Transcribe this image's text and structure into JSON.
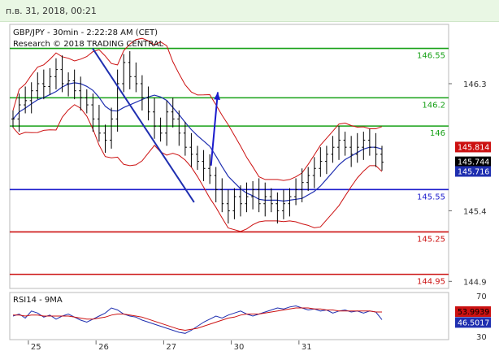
{
  "header": {
    "datetime": "п.в. 31, 2018, 00:21"
  },
  "colors": {
    "bull": "#000000",
    "ma": "#1f2fb0",
    "band": "#cc1111",
    "resistance": "#16a016",
    "pivot": "#1a1acc",
    "support": "#cc1111",
    "arrow": "#1a1acc",
    "rsi": "#1f2fb0",
    "rsi_ma": "#cc1111"
  },
  "chart_data": [
    {
      "type": "candlestick",
      "title": "GBP/JPY - 30min - 2:22:28 AM (CET)",
      "subtitle": "Research © 2018 TRADING CENTRAL",
      "ylim": [
        144.85,
        146.72
      ],
      "yticks": [
        "146.3",
        "145.4",
        "144.9"
      ],
      "xticks": [
        "25",
        "26",
        "27",
        "30",
        "31"
      ],
      "levels": [
        {
          "value": 146.55,
          "label": "146.55",
          "kind": "resistance"
        },
        {
          "value": 146.2,
          "label": "146.2",
          "kind": "resistance"
        },
        {
          "value": 146.0,
          "label": "146",
          "kind": "resistance"
        },
        {
          "value": 145.55,
          "label": "145.55",
          "kind": "pivot"
        },
        {
          "value": 145.25,
          "label": "145.25",
          "kind": "support"
        },
        {
          "value": 144.95,
          "label": "144.95",
          "kind": "support"
        }
      ],
      "price_tags": [
        {
          "label": "145.814",
          "value": 145.814,
          "kind": "band"
        },
        {
          "label": "145.744",
          "value": 145.744,
          "kind": "last"
        },
        {
          "label": "145.716",
          "value": 145.716,
          "kind": "ma"
        }
      ],
      "series": [
        {
          "kind": "close",
          "values": [
            146.05,
            146.15,
            146.18,
            146.25,
            146.3,
            146.28,
            146.35,
            146.4,
            146.3,
            146.32,
            146.25,
            146.2,
            146.15,
            146.05,
            145.95,
            145.9,
            146.05,
            146.3,
            146.45,
            146.35,
            146.3,
            146.2,
            146.1,
            146.0,
            145.95,
            146.1,
            146.05,
            145.95,
            145.85,
            145.8,
            145.75,
            145.7,
            145.65,
            145.55,
            145.45,
            145.4,
            145.5,
            145.45,
            145.5,
            145.55,
            145.45,
            145.5,
            145.45,
            145.4,
            145.45,
            145.5,
            145.55,
            145.6,
            145.65,
            145.7,
            145.75,
            145.8,
            145.85,
            145.9,
            145.85,
            145.8,
            145.85,
            145.9,
            145.85,
            145.8,
            145.744
          ]
        }
      ],
      "trendline": {
        "x": [
          25.95,
          27.45
        ],
        "y": [
          146.55,
          145.46
        ]
      },
      "arrow": {
        "x": [
          27.7,
          27.8
        ],
        "y": [
          145.72,
          146.24
        ]
      }
    },
    {
      "type": "line",
      "title": "RSI14 - 9MA",
      "ylim": [
        30,
        70
      ],
      "yticks": [
        "70",
        "30"
      ],
      "series": [
        {
          "kind": "rsi",
          "values": [
            50,
            52,
            48,
            55,
            53,
            49,
            51,
            47,
            50,
            52,
            49,
            46,
            44,
            47,
            50,
            53,
            58,
            56,
            52,
            50,
            49,
            46,
            44,
            42,
            40,
            38,
            36,
            34,
            33,
            36,
            40,
            44,
            47,
            50,
            48,
            51,
            53,
            55,
            52,
            50,
            52,
            54,
            56,
            58,
            57,
            59,
            60,
            58,
            56,
            57,
            55,
            56,
            53,
            55,
            56,
            54,
            55,
            53,
            55,
            54,
            46.5
          ]
        },
        {
          "kind": "rsi_ma",
          "values": [
            51,
            51,
            50,
            51,
            51,
            50,
            50,
            50,
            50,
            50,
            49,
            48,
            47,
            47,
            48,
            49,
            51,
            52,
            52,
            51,
            50,
            49,
            47,
            45,
            43,
            41,
            39,
            37,
            36,
            37,
            38,
            40,
            42,
            44,
            46,
            48,
            49,
            51,
            52,
            52,
            52,
            53,
            54,
            55,
            56,
            57,
            58,
            58,
            58,
            57,
            57,
            56,
            56,
            55,
            55,
            55,
            55,
            55,
            55,
            54,
            54
          ]
        }
      ],
      "price_tags": [
        {
          "label": "53.9939",
          "value": 53.99,
          "kind": "rsi_ma"
        },
        {
          "label": "46.5017",
          "value": 46.5,
          "kind": "rsi"
        }
      ]
    }
  ]
}
